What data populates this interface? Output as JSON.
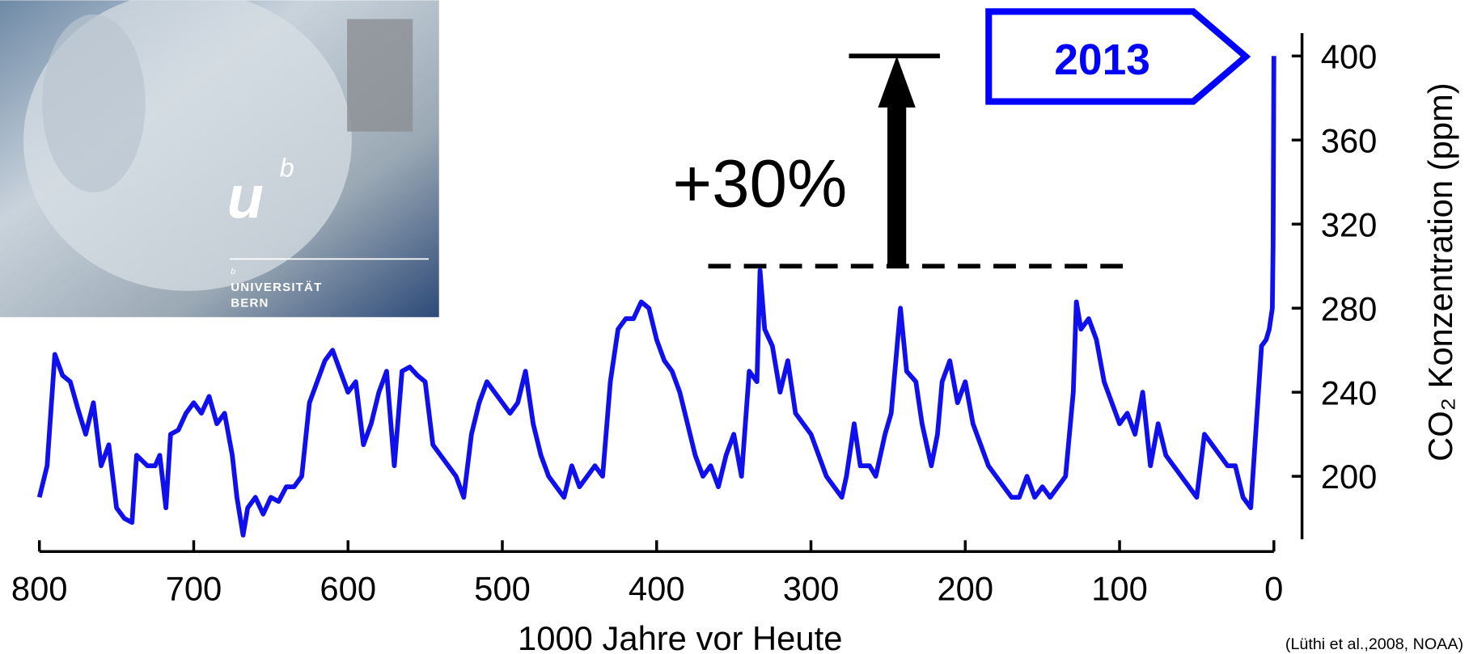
{
  "chart_data": {
    "type": "line",
    "x_label": "1000 Jahre vor Heute",
    "y_label": "CO₂ Konzentration (ppm)",
    "source": "(Lüthi et al.,2008, NOAA)",
    "annotation": {
      "text": "+30%",
      "from": 300,
      "to": 400
    },
    "callout": {
      "text": "2013",
      "color": "#0000ff"
    },
    "xlim": [
      800,
      0
    ],
    "xticks": [
      800,
      700,
      600,
      500,
      400,
      300,
      200,
      100,
      0
    ],
    "ylim": [
      170,
      410
    ],
    "yticks": [
      200,
      240,
      280,
      320,
      360,
      400
    ],
    "x": [
      800,
      795,
      790,
      785,
      780,
      775,
      770,
      765,
      760,
      755,
      750,
      745,
      740,
      737,
      730,
      725,
      722,
      718,
      715,
      710,
      705,
      700,
      695,
      690,
      685,
      680,
      675,
      672,
      668,
      665,
      660,
      655,
      650,
      645,
      640,
      635,
      630,
      625,
      620,
      615,
      610,
      605,
      600,
      595,
      590,
      585,
      580,
      575,
      570,
      565,
      560,
      555,
      550,
      545,
      540,
      535,
      530,
      525,
      520,
      515,
      510,
      505,
      500,
      495,
      490,
      485,
      480,
      475,
      470,
      465,
      460,
      455,
      450,
      445,
      440,
      435,
      430,
      425,
      420,
      415,
      410,
      405,
      400,
      395,
      390,
      385,
      380,
      375,
      370,
      365,
      360,
      355,
      350,
      345,
      340,
      335,
      333,
      330,
      325,
      320,
      315,
      310,
      305,
      300,
      295,
      290,
      285,
      280,
      277,
      272,
      268,
      262,
      258,
      252,
      248,
      242,
      238,
      232,
      228,
      222,
      218,
      215,
      210,
      205,
      200,
      195,
      190,
      185,
      180,
      175,
      170,
      165,
      160,
      155,
      150,
      145,
      140,
      135,
      130,
      128,
      125,
      120,
      115,
      110,
      105,
      100,
      95,
      90,
      85,
      80,
      75,
      70,
      65,
      60,
      55,
      50,
      45,
      40,
      35,
      30,
      25,
      20,
      15,
      10,
      8,
      5,
      3,
      1,
      0.5,
      0
    ],
    "series": [
      {
        "name": "CO2",
        "color": "#1010ee",
        "values": [
          190,
          205,
          258,
          248,
          245,
          232,
          220,
          235,
          205,
          215,
          185,
          180,
          178,
          210,
          205,
          205,
          210,
          185,
          220,
          222,
          230,
          235,
          230,
          238,
          225,
          230,
          210,
          190,
          172,
          185,
          190,
          182,
          190,
          188,
          195,
          195,
          200,
          235,
          245,
          255,
          260,
          250,
          240,
          245,
          215,
          225,
          240,
          250,
          205,
          250,
          252,
          248,
          245,
          215,
          210,
          205,
          200,
          190,
          220,
          235,
          245,
          240,
          235,
          230,
          235,
          250,
          225,
          210,
          200,
          195,
          190,
          205,
          195,
          200,
          205,
          200,
          245,
          270,
          275,
          275,
          283,
          280,
          265,
          255,
          250,
          240,
          225,
          210,
          200,
          205,
          195,
          210,
          220,
          200,
          250,
          245,
          298,
          270,
          262,
          240,
          255,
          230,
          225,
          220,
          210,
          200,
          195,
          190,
          200,
          225,
          205,
          205,
          200,
          220,
          230,
          280,
          250,
          245,
          225,
          205,
          220,
          245,
          255,
          235,
          245,
          225,
          215,
          205,
          200,
          195,
          190,
          190,
          200,
          190,
          195,
          190,
          195,
          200,
          240,
          283,
          270,
          275,
          265,
          245,
          235,
          225,
          230,
          220,
          240,
          205,
          225,
          210,
          205,
          200,
          195,
          190,
          220,
          215,
          210,
          205,
          205,
          190,
          185,
          240,
          262,
          265,
          270,
          280,
          310,
          400
        ]
      }
    ]
  },
  "logo": {
    "mark": "u",
    "superscript": "b",
    "small": "b",
    "line1": "UNIVERSITÄT",
    "line2": "BERN"
  }
}
